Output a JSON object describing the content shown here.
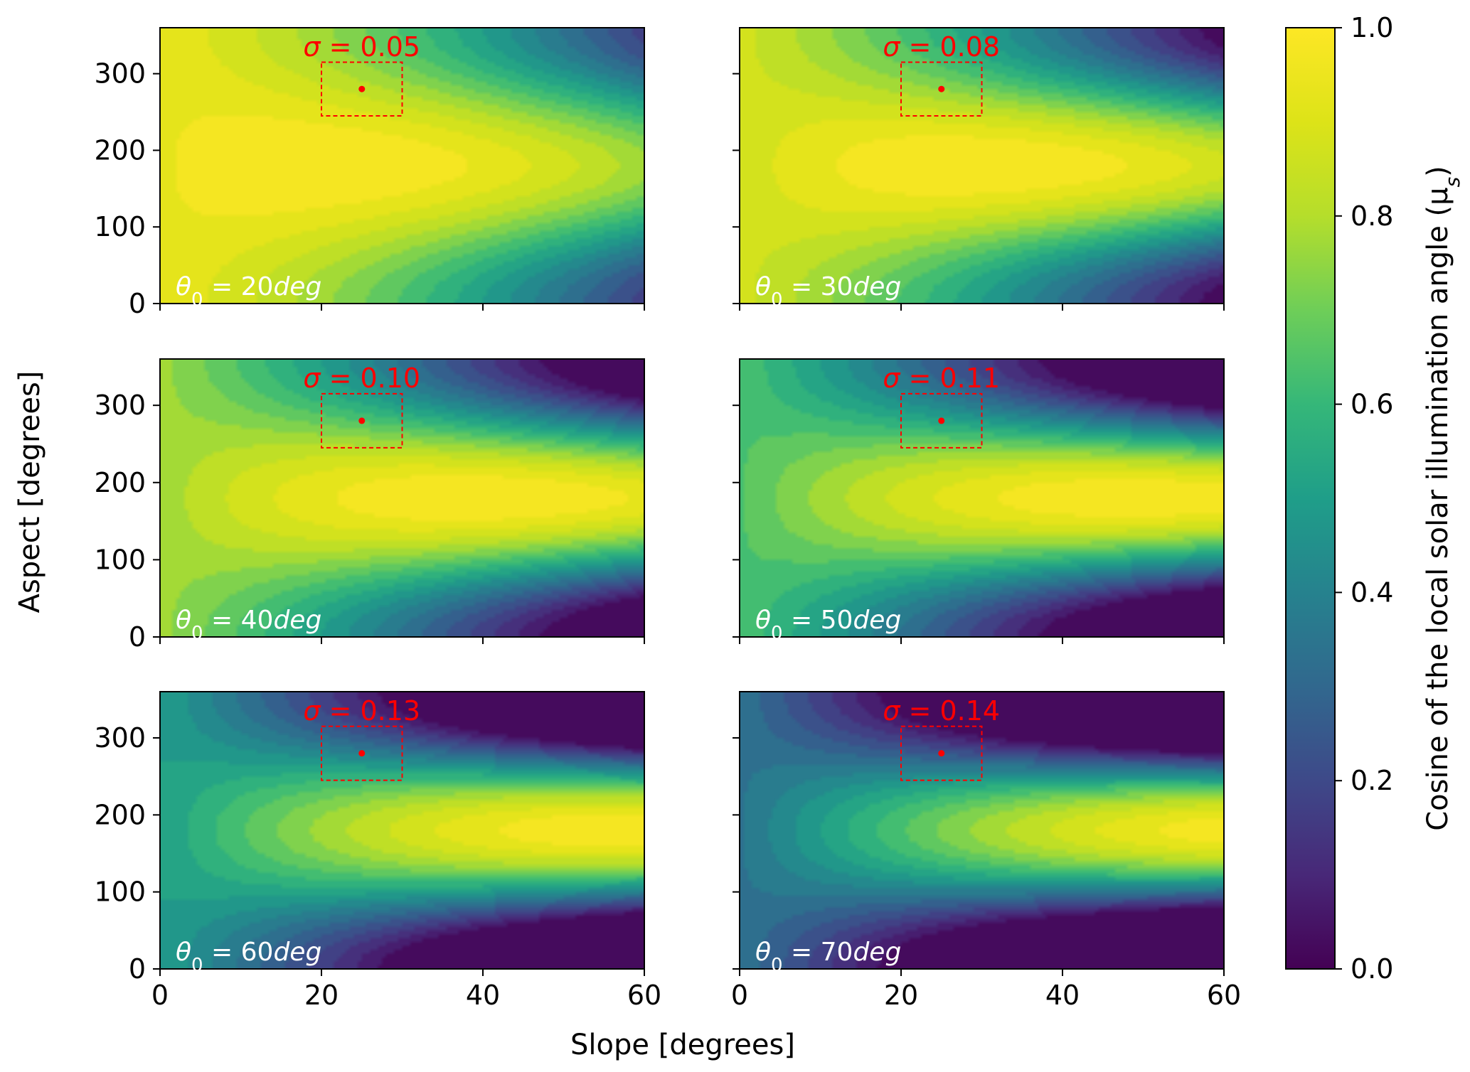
{
  "chart_data": {
    "type": "heatmap",
    "colormap": "viridis",
    "layout": {
      "rows": 3,
      "cols": 2,
      "sharex": true,
      "sharey": true
    },
    "xlabel": "Slope [degrees]",
    "ylabel": "Aspect [degrees]",
    "xlim": [
      0,
      60
    ],
    "ylim": [
      0,
      360
    ],
    "xticks": [
      0,
      20,
      40,
      60
    ],
    "yticks": [
      0,
      100,
      200,
      300
    ],
    "xtick_labels": [
      "0",
      "20",
      "40",
      "60"
    ],
    "ytick_labels": [
      "0",
      "100",
      "200",
      "300"
    ],
    "sun_azimuth": 180,
    "colorbar": {
      "label": "Cosine of the local solar illumination angle (μ",
      "label_sub": "s",
      "label_close": ")",
      "vmin": 0.0,
      "vmax": 1.0,
      "ticks": [
        0.0,
        0.2,
        0.4,
        0.6,
        0.8,
        1.0
      ],
      "tick_labels": [
        "0.0",
        "0.2",
        "0.4",
        "0.6",
        "0.8",
        "1.0"
      ]
    },
    "marker": {
      "point": {
        "slope": 25,
        "aspect": 280
      },
      "box": {
        "slope": [
          20,
          30
        ],
        "aspect": [
          245,
          315
        ]
      },
      "color": "#ff0000"
    },
    "panels": [
      {
        "theta0": 20,
        "theta_text": "20deg",
        "sigma": "0.05"
      },
      {
        "theta0": 30,
        "theta_text": "30deg",
        "sigma": "0.08"
      },
      {
        "theta0": 40,
        "theta_text": "40deg",
        "sigma": "0.10"
      },
      {
        "theta0": 50,
        "theta_text": "50deg",
        "sigma": "0.11"
      },
      {
        "theta0": 60,
        "theta_text": "60deg",
        "sigma": "0.13"
      },
      {
        "theta0": 70,
        "theta_text": "70deg",
        "sigma": "0.14"
      }
    ]
  }
}
